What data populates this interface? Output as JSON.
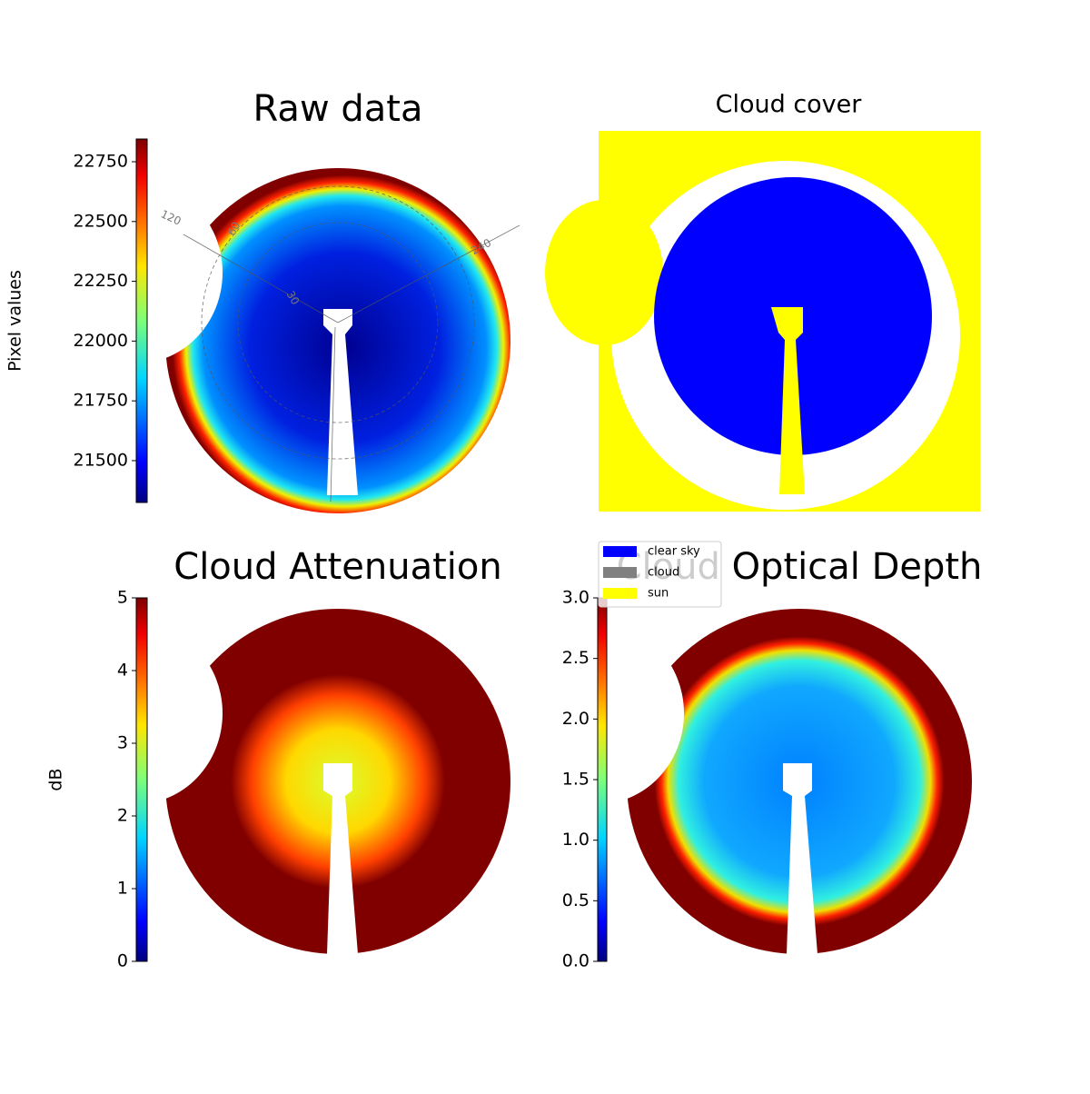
{
  "chart_data": [
    {
      "type": "image",
      "title": "Raw data",
      "annotations": [
        "120",
        "60",
        "240",
        "30"
      ],
      "colorbar": {
        "label": "Pixel values",
        "lim": [
          21325,
          22845
        ],
        "ticks": [
          21500,
          21750,
          22000,
          22250,
          22500,
          22750
        ]
      }
    },
    {
      "type": "image",
      "title": "Cloud cover",
      "legend": [
        {
          "name": "clear sky",
          "color": "#0000ff"
        },
        {
          "name": "cloud",
          "color": "#808080"
        },
        {
          "name": "sun",
          "color": "#ffff00"
        }
      ]
    },
    {
      "type": "image",
      "title": "Cloud Attenuation",
      "colorbar": {
        "label": "dB",
        "lim": [
          0,
          5
        ],
        "ticks": [
          0,
          1,
          2,
          3,
          4,
          5
        ]
      }
    },
    {
      "type": "image",
      "title": "Cloud Optical Depth",
      "colorbar": {
        "lim": [
          0,
          3
        ],
        "ticks": [
          {
            "value": 0,
            "label": "0.0"
          },
          {
            "value": 0.5,
            "label": "0.5"
          },
          {
            "value": 1,
            "label": "1.0"
          },
          {
            "value": 1.5,
            "label": "1.5"
          },
          {
            "value": 2,
            "label": "2.0"
          },
          {
            "value": 2.5,
            "label": "2.5"
          },
          {
            "value": 3,
            "label": "3.0"
          }
        ]
      }
    }
  ]
}
